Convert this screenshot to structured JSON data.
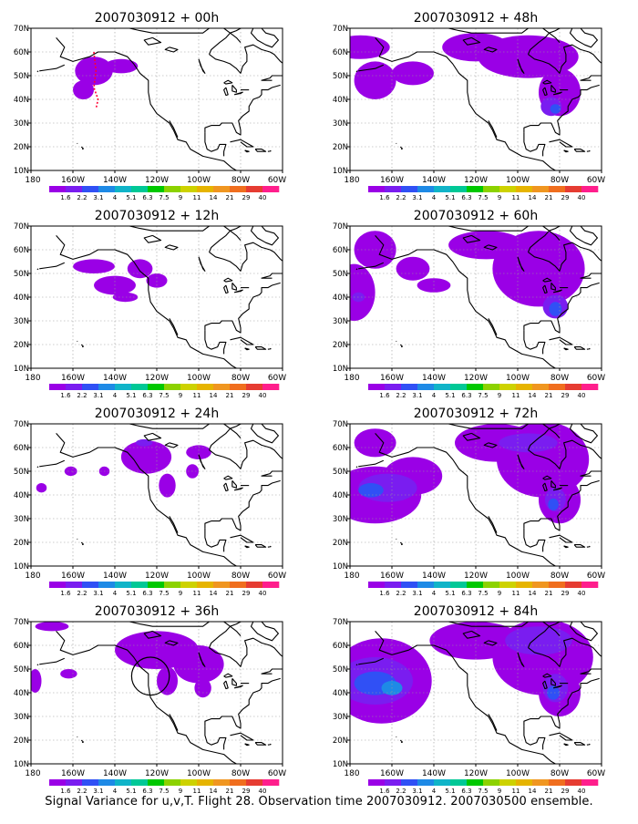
{
  "figure_caption": "Signal Variance for u,v,T. Flight 28. Observation time 2007030912. 2007030500 ensemble.",
  "colors": {
    "land_outline": "#000000",
    "grid": "#999999",
    "track": "#ff0033",
    "palette": [
      "#9a00e6",
      "#7a1df0",
      "#3050f5",
      "#1e8ae6",
      "#10b4c8",
      "#00c896",
      "#00c800",
      "#8cd200",
      "#cdd200",
      "#e6b400",
      "#f09620",
      "#f06e1e",
      "#e63c32",
      "#ff1e8c"
    ]
  },
  "chart_data": {
    "type": "heatmap",
    "variable": "signal variance (u,v,T)",
    "colorbar_labels": [
      "1.6",
      "2.2",
      "3.1",
      "4",
      "5.1",
      "6.3",
      "7.5",
      "9",
      "11",
      "14",
      "21",
      "29",
      "40"
    ],
    "panels": [
      {
        "title": "2007030912 + 00h",
        "col": 0,
        "row": 0,
        "lon_ticks": [
          "180",
          "160W",
          "140W",
          "120W",
          "100W",
          "80W",
          "60W"
        ],
        "lat_ticks": [
          "10N",
          "20N",
          "30N",
          "40N",
          "50N",
          "60N",
          "70N"
        ],
        "track": [
          [
            -150,
            60
          ],
          [
            -149,
            52
          ],
          [
            -150,
            45
          ],
          [
            -148,
            40
          ],
          [
            -149,
            36
          ]
        ],
        "blobs": [
          {
            "lon": -150,
            "lat": 52,
            "rl": 9,
            "rt": 6,
            "level": 0
          },
          {
            "lon": -155,
            "lat": 44,
            "rl": 5,
            "rt": 4,
            "level": 0
          },
          {
            "lon": -137,
            "lat": 54,
            "rl": 8,
            "rt": 3,
            "level": 0
          }
        ]
      },
      {
        "title": "2007030912 + 48h",
        "col": 1,
        "row": 0,
        "lon_ticks": [
          "180",
          "160W",
          "140W",
          "120W",
          "100W",
          "80W",
          "60W"
        ],
        "lat_ticks": [
          "10N",
          "20N",
          "30N",
          "40N",
          "50N",
          "60N",
          "70N"
        ],
        "blobs": [
          {
            "lon": -175,
            "lat": 62,
            "rl": 14,
            "rt": 5,
            "level": 0
          },
          {
            "lon": -168,
            "lat": 48,
            "rl": 10,
            "rt": 8,
            "level": 0
          },
          {
            "lon": -150,
            "lat": 51,
            "rl": 10,
            "rt": 5,
            "level": 0
          },
          {
            "lon": -120,
            "lat": 62,
            "rl": 16,
            "rt": 6,
            "level": 0
          },
          {
            "lon": -95,
            "lat": 58,
            "rl": 24,
            "rt": 9,
            "level": 0
          },
          {
            "lon": -80,
            "lat": 43,
            "rl": 10,
            "rt": 10,
            "level": 0
          },
          {
            "lon": -84,
            "lat": 37,
            "rl": 5,
            "rt": 4,
            "level": 1
          },
          {
            "lon": -82,
            "lat": 36,
            "rl": 2.5,
            "rt": 2,
            "level": 2
          }
        ]
      },
      {
        "title": "2007030912 + 12h",
        "col": 0,
        "row": 1,
        "lon_ticks": [
          "180",
          "160W",
          "140W",
          "120W",
          "100W",
          "80W",
          "60W"
        ],
        "lat_ticks": [
          "10N",
          "20N",
          "30N",
          "40N",
          "50N",
          "60N",
          "70N"
        ],
        "blobs": [
          {
            "lon": -150,
            "lat": 53,
            "rl": 10,
            "rt": 3,
            "level": 0
          },
          {
            "lon": -140,
            "lat": 45,
            "rl": 10,
            "rt": 4,
            "level": 0
          },
          {
            "lon": -128,
            "lat": 52,
            "rl": 6,
            "rt": 4,
            "level": 0
          },
          {
            "lon": -120,
            "lat": 47,
            "rl": 5,
            "rt": 3,
            "level": 0
          },
          {
            "lon": -135,
            "lat": 40,
            "rl": 6,
            "rt": 2,
            "level": 0
          }
        ]
      },
      {
        "title": "2007030912 + 60h",
        "col": 1,
        "row": 1,
        "lon_ticks": [
          "180",
          "160W",
          "140W",
          "120W",
          "100W",
          "80W",
          "60W"
        ],
        "lat_ticks": [
          "10N",
          "20N",
          "30N",
          "40N",
          "50N",
          "60N",
          "70N"
        ],
        "blobs": [
          {
            "lon": -178,
            "lat": 42,
            "rl": 10,
            "rt": 12,
            "level": 0
          },
          {
            "lon": -168,
            "lat": 60,
            "rl": 10,
            "rt": 8,
            "level": 0
          },
          {
            "lon": -150,
            "lat": 52,
            "rl": 8,
            "rt": 5,
            "level": 0
          },
          {
            "lon": -115,
            "lat": 62,
            "rl": 18,
            "rt": 6,
            "level": 0
          },
          {
            "lon": -90,
            "lat": 52,
            "rl": 22,
            "rt": 16,
            "level": 0
          },
          {
            "lon": -140,
            "lat": 45,
            "rl": 8,
            "rt": 3,
            "level": 0
          },
          {
            "lon": -176,
            "lat": 40,
            "rl": 3,
            "rt": 2,
            "level": 1
          },
          {
            "lon": -82,
            "lat": 36,
            "rl": 6,
            "rt": 5,
            "level": 1
          },
          {
            "lon": -82,
            "lat": 35,
            "rl": 3,
            "rt": 3,
            "level": 2
          }
        ]
      },
      {
        "title": "2007030912 + 24h",
        "col": 0,
        "row": 2,
        "lon_ticks": [
          "180",
          "160W",
          "140W",
          "120W",
          "100W",
          "80W",
          "60W"
        ],
        "lat_ticks": [
          "10N",
          "20N",
          "30N",
          "40N",
          "50N",
          "60N",
          "70N"
        ],
        "blobs": [
          {
            "lon": -175,
            "lat": 43,
            "rl": 2.5,
            "rt": 2,
            "level": 0
          },
          {
            "lon": -161,
            "lat": 50,
            "rl": 3,
            "rt": 2,
            "level": 0
          },
          {
            "lon": -145,
            "lat": 50,
            "rl": 2.5,
            "rt": 2,
            "level": 0
          },
          {
            "lon": -125,
            "lat": 56,
            "rl": 12,
            "rt": 7,
            "level": 0
          },
          {
            "lon": -100,
            "lat": 58,
            "rl": 6,
            "rt": 3,
            "level": 0
          },
          {
            "lon": -103,
            "lat": 50,
            "rl": 3,
            "rt": 3,
            "level": 0
          },
          {
            "lon": -115,
            "lat": 44,
            "rl": 4,
            "rt": 5,
            "level": 0
          },
          {
            "lon": -126,
            "lat": 62,
            "rl": 4,
            "rt": 1.5,
            "level": 1
          }
        ]
      },
      {
        "title": "2007030912 + 72h",
        "col": 1,
        "row": 2,
        "lon_ticks": [
          "180",
          "160W",
          "140W",
          "120W",
          "100W",
          "80W",
          "60W"
        ],
        "lat_ticks": [
          "10N",
          "20N",
          "30N",
          "40N",
          "50N",
          "60N",
          "70N"
        ],
        "blobs": [
          {
            "lon": -168,
            "lat": 40,
            "rl": 22,
            "rt": 12,
            "level": 0
          },
          {
            "lon": -150,
            "lat": 48,
            "rl": 14,
            "rt": 8,
            "level": 0
          },
          {
            "lon": -168,
            "lat": 62,
            "rl": 10,
            "rt": 6,
            "level": 0
          },
          {
            "lon": -110,
            "lat": 62,
            "rl": 20,
            "rt": 8,
            "level": 0
          },
          {
            "lon": -88,
            "lat": 55,
            "rl": 22,
            "rt": 16,
            "level": 0
          },
          {
            "lon": -80,
            "lat": 38,
            "rl": 10,
            "rt": 10,
            "level": 0
          },
          {
            "lon": -162,
            "lat": 43,
            "rl": 14,
            "rt": 6,
            "level": 1
          },
          {
            "lon": -95,
            "lat": 62,
            "rl": 14,
            "rt": 4,
            "level": 1
          },
          {
            "lon": -82,
            "lat": 38,
            "rl": 5,
            "rt": 5,
            "level": 1
          },
          {
            "lon": -170,
            "lat": 42,
            "rl": 6,
            "rt": 3,
            "level": 2
          },
          {
            "lon": -83,
            "lat": 36,
            "rl": 2.5,
            "rt": 2.5,
            "level": 2
          }
        ]
      },
      {
        "title": "2007030912 + 36h",
        "col": 0,
        "row": 3,
        "lon_ticks": [
          "180",
          "160W",
          "140W",
          "120W",
          "100W",
          "80W",
          "60W"
        ],
        "lat_ticks": [
          "10N",
          "20N",
          "30N",
          "40N",
          "50N",
          "60N",
          "70N"
        ],
        "circle": {
          "lon": -123,
          "lat": 47,
          "rl": 9,
          "rt": 8
        },
        "blobs": [
          {
            "lon": -178,
            "lat": 45,
            "rl": 3,
            "rt": 5,
            "level": 0
          },
          {
            "lon": -162,
            "lat": 48,
            "rl": 4,
            "rt": 2,
            "level": 0
          },
          {
            "lon": -170,
            "lat": 68,
            "rl": 8,
            "rt": 2,
            "level": 0
          },
          {
            "lon": -120,
            "lat": 58,
            "rl": 20,
            "rt": 8,
            "level": 0
          },
          {
            "lon": -100,
            "lat": 52,
            "rl": 12,
            "rt": 8,
            "level": 0
          },
          {
            "lon": -115,
            "lat": 45,
            "rl": 5,
            "rt": 6,
            "level": 0
          },
          {
            "lon": -98,
            "lat": 42,
            "rl": 4,
            "rt": 4,
            "level": 0
          }
        ]
      },
      {
        "title": "2007030912 + 84h",
        "col": 1,
        "row": 3,
        "lon_ticks": [
          "180",
          "160W",
          "140W",
          "120W",
          "100W",
          "80W",
          "60W"
        ],
        "lat_ticks": [
          "10N",
          "20N",
          "30N",
          "40N",
          "50N",
          "60N",
          "70N"
        ],
        "blobs": [
          {
            "lon": -165,
            "lat": 45,
            "rl": 24,
            "rt": 18,
            "level": 0
          },
          {
            "lon": -120,
            "lat": 62,
            "rl": 22,
            "rt": 8,
            "level": 0
          },
          {
            "lon": -88,
            "lat": 55,
            "rl": 24,
            "rt": 16,
            "level": 0
          },
          {
            "lon": -80,
            "lat": 40,
            "rl": 10,
            "rt": 10,
            "level": 0
          },
          {
            "lon": -168,
            "lat": 45,
            "rl": 18,
            "rt": 10,
            "level": 1
          },
          {
            "lon": -90,
            "lat": 62,
            "rl": 16,
            "rt": 6,
            "level": 1
          },
          {
            "lon": -82,
            "lat": 42,
            "rl": 6,
            "rt": 6,
            "level": 1
          },
          {
            "lon": -168,
            "lat": 44,
            "rl": 10,
            "rt": 5,
            "level": 2
          },
          {
            "lon": -160,
            "lat": 42,
            "rl": 5,
            "rt": 3,
            "level": 3
          },
          {
            "lon": -83,
            "lat": 40,
            "rl": 3,
            "rt": 3,
            "level": 2
          }
        ]
      }
    ]
  }
}
